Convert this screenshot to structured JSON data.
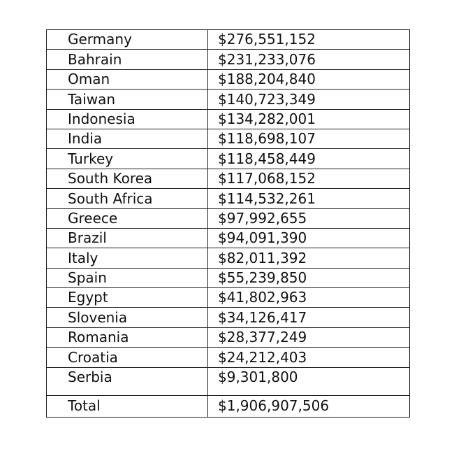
{
  "table": {
    "rows": [
      [
        "Germany",
        "$276,551,152"
      ],
      [
        "Bahrain",
        "$231,233,076"
      ],
      [
        "Oman",
        "$188,204,840"
      ],
      [
        "Taiwan",
        "$140,723,349"
      ],
      [
        "Indonesia",
        "$134,282,001"
      ],
      [
        "India",
        "$118,698,107"
      ],
      [
        "Turkey",
        "$118,458,449"
      ],
      [
        "South Korea",
        "$117,068,152"
      ],
      [
        "South Africa",
        "$114,532,261"
      ],
      [
        "Greece",
        "$97,992,655"
      ],
      [
        "Brazil",
        "$94,091,390"
      ],
      [
        "Italy",
        "$82,011,392"
      ],
      [
        "Spain",
        "$55,239,850"
      ],
      [
        "Egypt",
        "$41,802,963"
      ],
      [
        "Slovenia",
        "$34,126,417"
      ],
      [
        "Romania",
        "$28,377,249"
      ],
      [
        "Croatia",
        "$24,212,403"
      ],
      [
        "Serbia",
        "$9,301,800"
      ]
    ],
    "total": [
      "Total",
      "$1,906,907,506"
    ]
  }
}
